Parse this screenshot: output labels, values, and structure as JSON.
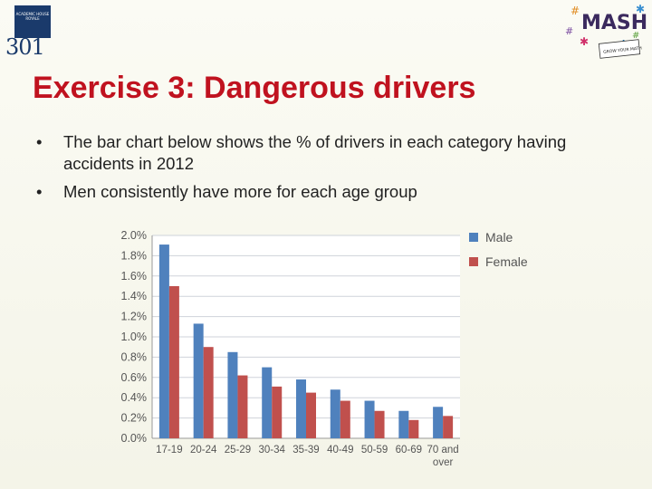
{
  "slide": {
    "title": "Exercise 3: Dangerous drivers",
    "bullets": [
      "The bar chart below shows the % of drivers in each category having accidents in 2012",
      "Men consistently have more for each age group"
    ],
    "bullet_glyph": "•"
  },
  "logos": {
    "left_box_text": "ACADEMIC HOUSE ROYALE",
    "left_number": "301",
    "right_word": "MASH",
    "right_sub": "GROW YOUR MATH"
  },
  "chart_data": {
    "type": "bar",
    "categories": [
      "17-19",
      "20-24",
      "25-29",
      "30-34",
      "35-39",
      "40-49",
      "50-59",
      "60-69",
      "70 and over"
    ],
    "series": [
      {
        "name": "Male",
        "color": "#4f81bd",
        "values": [
          1.91,
          1.13,
          0.85,
          0.7,
          0.58,
          0.48,
          0.37,
          0.27,
          0.31
        ]
      },
      {
        "name": "Female",
        "color": "#c0504d",
        "values": [
          1.5,
          0.9,
          0.62,
          0.51,
          0.45,
          0.37,
          0.27,
          0.18,
          0.22
        ]
      }
    ],
    "yticks": [
      "0.0%",
      "0.2%",
      "0.4%",
      "0.6%",
      "0.8%",
      "1.0%",
      "1.2%",
      "1.4%",
      "1.6%",
      "1.8%",
      "2.0%"
    ],
    "ylim": [
      0,
      2.0
    ],
    "grid": true,
    "legend_position": "right",
    "title": "",
    "xlabel": "",
    "ylabel": ""
  }
}
